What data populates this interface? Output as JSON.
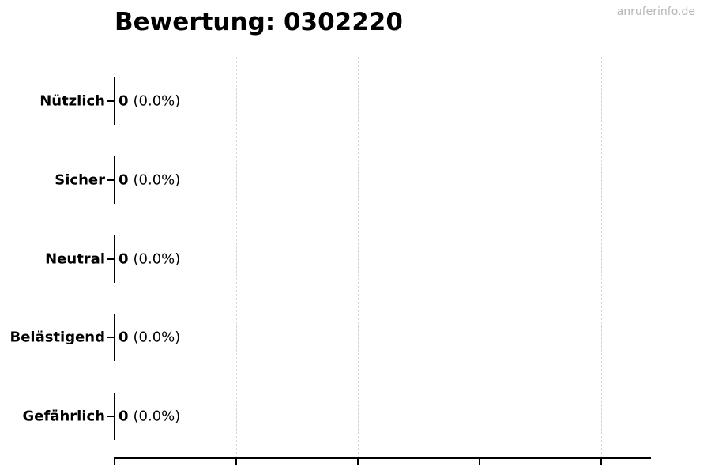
{
  "watermark": "anruferinfo.de",
  "chart_data": {
    "type": "bar",
    "orientation": "horizontal",
    "title": "Bewertung: 0302220",
    "categories": [
      "Nützlich",
      "Sicher",
      "Neutral",
      "Belästigend",
      "Gefährlich"
    ],
    "values": [
      0,
      0,
      0,
      0,
      0
    ],
    "percentages": [
      "0.0%",
      "0.0%",
      "0.0%",
      "0.0%",
      "0.0%"
    ],
    "rows": [
      {
        "label": "Nützlich",
        "count": "0",
        "percent": "(0.0%)"
      },
      {
        "label": "Sicher",
        "count": "0",
        "percent": "(0.0%)"
      },
      {
        "label": "Neutral",
        "count": "0",
        "percent": "(0.0%)"
      },
      {
        "label": "Belästigend",
        "count": "0",
        "percent": "(0.0%)"
      },
      {
        "label": "Gefährlich",
        "count": "0",
        "percent": "(0.0%)"
      }
    ],
    "xlabel": "",
    "ylabel": "",
    "x_tick_labels": [],
    "x_gridline_count": 5,
    "grid": "vertical-dashed",
    "legend": "none",
    "colors": {
      "bar_edge": "#000000",
      "gridline": "#d5d5d5",
      "axis": "#000000",
      "text": "#000000",
      "watermark": "#b5b5b5"
    }
  }
}
